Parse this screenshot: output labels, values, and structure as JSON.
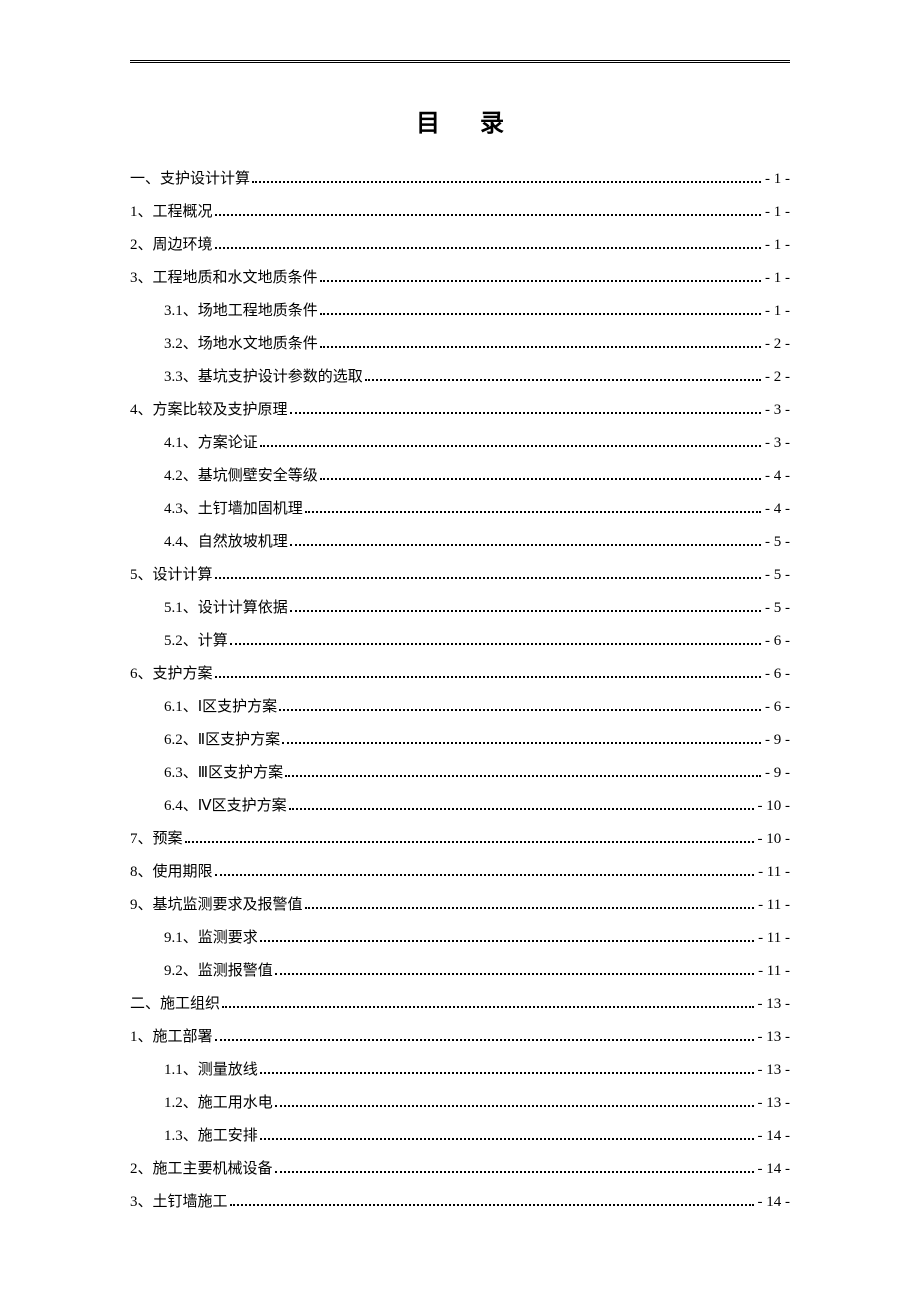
{
  "title": "目录",
  "toc": [
    {
      "label": "一、支护设计计算",
      "page": "- 1 -",
      "indent": 0
    },
    {
      "label": "1、工程概况",
      "page": "- 1 -",
      "indent": 0
    },
    {
      "label": "2、周边环境",
      "page": "- 1 -",
      "indent": 0
    },
    {
      "label": "3、工程地质和水文地质条件",
      "page": "- 1 -",
      "indent": 0
    },
    {
      "label": "3.1、场地工程地质条件",
      "page": "- 1 -",
      "indent": 1
    },
    {
      "label": "3.2、场地水文地质条件",
      "page": "- 2 -",
      "indent": 1
    },
    {
      "label": "3.3、基坑支护设计参数的选取",
      "page": "- 2 -",
      "indent": 1
    },
    {
      "label": "4、方案比较及支护原理",
      "page": "- 3 -",
      "indent": 0
    },
    {
      "label": "4.1、方案论证",
      "page": "- 3 -",
      "indent": 1
    },
    {
      "label": "4.2、基坑侧壁安全等级",
      "page": "- 4 -",
      "indent": 1
    },
    {
      "label": "4.3、土钉墙加固机理",
      "page": "- 4 -",
      "indent": 1
    },
    {
      "label": "4.4、自然放坡机理",
      "page": "- 5 -",
      "indent": 1
    },
    {
      "label": "5、设计计算",
      "page": "- 5 -",
      "indent": 0
    },
    {
      "label": "5.1、设计计算依据",
      "page": "- 5 -",
      "indent": 1
    },
    {
      "label": "5.2、计算",
      "page": "- 6 -",
      "indent": 1
    },
    {
      "label": "6、支护方案",
      "page": "- 6 -",
      "indent": 0
    },
    {
      "label": "6.1、Ⅰ区支护方案",
      "page": "- 6 -",
      "indent": 1
    },
    {
      "label": "6.2、Ⅱ区支护方案",
      "page": "- 9 -",
      "indent": 1
    },
    {
      "label": "6.3、Ⅲ区支护方案",
      "page": "- 9 -",
      "indent": 1
    },
    {
      "label": "6.4、Ⅳ区支护方案",
      "page": "- 10 -",
      "indent": 1
    },
    {
      "label": "7、预案",
      "page": "- 10 -",
      "indent": 0
    },
    {
      "label": "8、使用期限",
      "page": "- 11 -",
      "indent": 0
    },
    {
      "label": "9、基坑监测要求及报警值",
      "page": "- 11 -",
      "indent": 0
    },
    {
      "label": "9.1、监测要求",
      "page": "- 11 -",
      "indent": 1
    },
    {
      "label": "9.2、监测报警值",
      "page": "- 11 -",
      "indent": 1
    },
    {
      "label": "二、施工组织",
      "page": "- 13 -",
      "indent": 0
    },
    {
      "label": "1、施工部署",
      "page": "- 13 -",
      "indent": 0
    },
    {
      "label": "1.1、测量放线",
      "page": "- 13 -",
      "indent": 1
    },
    {
      "label": "1.2、施工用水电",
      "page": "- 13 -",
      "indent": 1
    },
    {
      "label": "1.3、施工安排",
      "page": "- 14 -",
      "indent": 1
    },
    {
      "label": "2、施工主要机械设备",
      "page": "- 14 -",
      "indent": 0
    },
    {
      "label": "3、土钉墙施工",
      "page": "- 14 -",
      "indent": 0
    }
  ]
}
